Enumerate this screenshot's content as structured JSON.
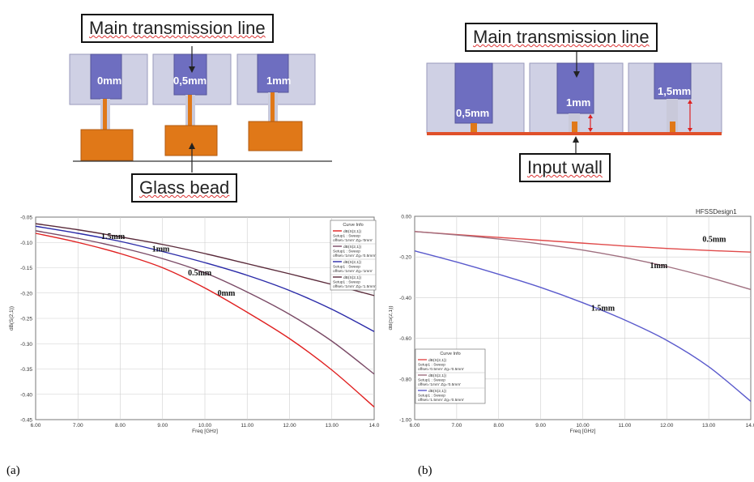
{
  "panel_a": {
    "callout_top": "Main transmission line",
    "callout_bottom": "Glass bead",
    "rod_labels": [
      "0mm",
      "0,5mm",
      "1mm"
    ],
    "label": "(a)"
  },
  "panel_b": {
    "callout_top": "Main transmission line",
    "callout_bottom": "Input wall",
    "rod_labels": [
      "0,5mm",
      "1mm",
      "1,5mm"
    ],
    "label": "(b)",
    "header": "HFSSDesign1"
  },
  "colors": {
    "red": "#e02020",
    "purple": "#7a4a66",
    "blue": "#2a2aa8",
    "brown": "#5a2a3a",
    "light_red": "#e04a4a",
    "light_purple": "#a07080",
    "light_blue": "#5a5acc",
    "orange": "#e07818",
    "cylinder": "#6e6ec0"
  },
  "chart_data": [
    {
      "type": "line",
      "xlabel": "Freq [GHz]",
      "ylabel": "dB(S(2,1))",
      "xlim": [
        6.0,
        14.0
      ],
      "ylim": [
        -0.45,
        -0.05
      ],
      "x_ticks": [
        "6.00",
        "7.00",
        "8.00",
        "9.00",
        "10.00",
        "11.00",
        "12.00",
        "13.00",
        "14.0"
      ],
      "y_ticks": [
        "-0.05",
        "-0.10",
        "-0.15",
        "-0.20",
        "-0.25",
        "-0.30",
        "-0.35",
        "-0.40",
        "-0.45"
      ],
      "grid": true,
      "legend_title": "Curve Info",
      "legend_position": "top-right",
      "series": [
        {
          "color": "red",
          "legend": [
            "dB(S(2,1))",
            "Setup1 : Sweep",
            "offset='1mm' Zg='0mm'"
          ],
          "x": [
            6,
            7,
            8,
            9,
            10,
            11,
            12,
            13,
            14
          ],
          "y": [
            -0.082,
            -0.1,
            -0.122,
            -0.15,
            -0.19,
            -0.238,
            -0.29,
            -0.352,
            -0.425
          ]
        },
        {
          "color": "purple",
          "legend": [
            "dB(S(2,1))",
            "Setup1 : Sweep",
            "offset='1mm' Zg='0.5mm'"
          ],
          "x": [
            6,
            7,
            8,
            9,
            10,
            11,
            12,
            13,
            14
          ],
          "y": [
            -0.077,
            -0.092,
            -0.11,
            -0.132,
            -0.16,
            -0.198,
            -0.242,
            -0.295,
            -0.36
          ]
        },
        {
          "color": "blue",
          "legend": [
            "dB(S(2,1))",
            "Setup1 : Sweep",
            "offset='1mm' Zg='1mm'"
          ],
          "x": [
            6,
            7,
            8,
            9,
            10,
            11,
            12,
            13,
            14
          ],
          "y": [
            -0.068,
            -0.082,
            -0.098,
            -0.118,
            -0.14,
            -0.165,
            -0.195,
            -0.232,
            -0.276
          ]
        },
        {
          "color": "brown",
          "legend": [
            "dB(S(2,1))",
            "Setup1 : Sweep",
            "offset='1mm' Zg='1.5mm'"
          ],
          "x": [
            6,
            7,
            8,
            9,
            10,
            11,
            12,
            13,
            14
          ],
          "y": [
            -0.063,
            -0.075,
            -0.089,
            -0.104,
            -0.122,
            -0.142,
            -0.162,
            -0.183,
            -0.205
          ]
        }
      ],
      "annotations": [
        {
          "text": "1.5mm",
          "x": 7.55,
          "y": -0.093
        },
        {
          "text": "1mm",
          "x": 8.75,
          "y": -0.118
        },
        {
          "text": "0.5mm",
          "x": 9.6,
          "y": -0.165
        },
        {
          "text": "0mm",
          "x": 10.3,
          "y": -0.205
        }
      ]
    },
    {
      "type": "line",
      "xlabel": "Freq [GHz]",
      "ylabel": "dB(S(2,1))",
      "xlim": [
        6.0,
        14.0
      ],
      "ylim": [
        -1.0,
        0.0
      ],
      "x_ticks": [
        "6.00",
        "7.00",
        "8.00",
        "9.00",
        "10.00",
        "11.00",
        "12.00",
        "13.00",
        "14.0"
      ],
      "y_ticks": [
        "0.00",
        "-0.20",
        "-0.40",
        "-0.60",
        "-0.80",
        "-1.00"
      ],
      "grid": true,
      "legend_title": "Curve Info",
      "legend_position": "bottom-left",
      "series": [
        {
          "color": "light_red",
          "legend": [
            "dB(S(2,1))",
            "Setup1 : Sweep",
            "offset='0.5mm' Zg='0.5mm'"
          ],
          "x": [
            6,
            7,
            8,
            9,
            10,
            11,
            12,
            13,
            14
          ],
          "y": [
            -0.075,
            -0.09,
            -0.104,
            -0.118,
            -0.132,
            -0.146,
            -0.158,
            -0.168,
            -0.176
          ]
        },
        {
          "color": "light_purple",
          "legend": [
            "dB(S(2,1))",
            "Setup1 : Sweep",
            "offset='1mm' Zg='0.5mm'"
          ],
          "x": [
            6,
            7,
            8,
            9,
            10,
            11,
            12,
            13,
            14
          ],
          "y": [
            -0.075,
            -0.092,
            -0.112,
            -0.136,
            -0.166,
            -0.203,
            -0.247,
            -0.3,
            -0.36
          ]
        },
        {
          "color": "light_blue",
          "legend": [
            "dB(S(2,1))",
            "Setup1 : Sweep",
            "offset='1.5mm' Zg='0.5mm'"
          ],
          "x": [
            6,
            7,
            8,
            9,
            10,
            11,
            12,
            13,
            14
          ],
          "y": [
            -0.17,
            -0.225,
            -0.285,
            -0.35,
            -0.425,
            -0.51,
            -0.61,
            -0.74,
            -0.91
          ]
        }
      ],
      "annotations": [
        {
          "text": "0.5mm",
          "x": 12.85,
          "y": -0.125
        },
        {
          "text": "1mm",
          "x": 11.6,
          "y": -0.255
        },
        {
          "text": "1.5mm",
          "x": 10.2,
          "y": -0.465
        }
      ]
    }
  ]
}
